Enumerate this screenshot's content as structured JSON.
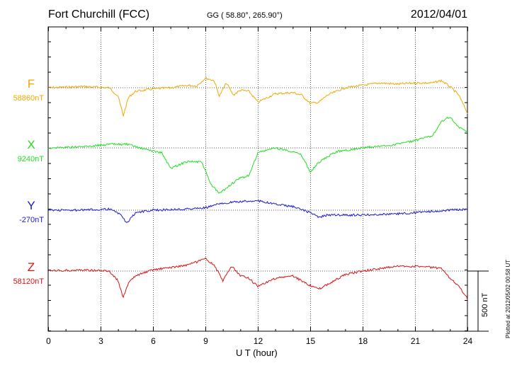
{
  "header": {
    "station": "Fort Churchill (FCC)",
    "coords": "GG ( 58.80°, 265.90°)",
    "date": "2012/04/01"
  },
  "footer": {
    "plotted": "Plotted at 2012/05/02 00:58 UT"
  },
  "chart_data": {
    "type": "line",
    "title": "Fort Churchill (FCC)",
    "xlabel": "U T (hour)",
    "ylabel": "",
    "xlim": [
      0,
      24
    ],
    "xticks": [
      "0",
      "3",
      "6",
      "9",
      "12",
      "15",
      "18",
      "21",
      "24"
    ],
    "grid": true,
    "scale_bar": {
      "label": "500 nT",
      "value_nT": 500
    },
    "series": [
      {
        "name": "F",
        "baseline_label": "58860nT",
        "color": "#f0a800",
        "x": [
          0,
          2,
          3.5,
          4.0,
          4.3,
          4.6,
          5,
          6,
          7,
          8,
          8.5,
          9,
          9.5,
          9.8,
          10.2,
          10.6,
          11,
          11.5,
          12,
          13,
          14,
          14.5,
          15,
          15.5,
          16,
          17,
          18,
          19,
          20,
          21,
          22,
          22.5,
          23,
          23.5,
          24
        ],
        "values": [
          0,
          10,
          0,
          -70,
          -230,
          -80,
          -30,
          -10,
          0,
          20,
          15,
          80,
          60,
          -70,
          40,
          -60,
          -20,
          -30,
          -120,
          -50,
          -40,
          -60,
          -130,
          -120,
          -60,
          0,
          20,
          40,
          30,
          40,
          40,
          60,
          10,
          -60,
          -210
        ]
      },
      {
        "name": "X",
        "baseline_label": "9240nT",
        "color": "#22dd22",
        "x": [
          0,
          2,
          3.5,
          4.5,
          5.5,
          6.5,
          7,
          8,
          8.8,
          9.3,
          9.8,
          10.5,
          11,
          11.5,
          12,
          13,
          14,
          14.5,
          15,
          15.5,
          16.5,
          18,
          19.5,
          21,
          22,
          22.5,
          23,
          23.5,
          24
        ],
        "values": [
          0,
          10,
          30,
          30,
          -10,
          -40,
          -170,
          -110,
          -120,
          -300,
          -380,
          -300,
          -250,
          -230,
          -40,
          0,
          -30,
          -60,
          -200,
          -120,
          -30,
          0,
          20,
          60,
          100,
          220,
          260,
          170,
          130
        ]
      },
      {
        "name": "Y",
        "baseline_label": "-270nT",
        "color": "#1a1acc",
        "x": [
          0,
          2,
          3.5,
          4.2,
          4.5,
          5,
          6,
          8,
          9,
          10,
          11,
          12,
          13,
          14,
          15,
          15.5,
          16,
          18,
          20,
          22,
          24
        ],
        "values": [
          0,
          0,
          10,
          -40,
          -110,
          -20,
          0,
          10,
          20,
          60,
          70,
          80,
          50,
          30,
          -20,
          -60,
          -40,
          -40,
          -30,
          -10,
          10
        ]
      },
      {
        "name": "Z",
        "baseline_label": "58120nT",
        "color": "#dd1111",
        "x": [
          0,
          2,
          3.5,
          4.0,
          4.3,
          4.6,
          5,
          6,
          7,
          8,
          9,
          9.5,
          10,
          10.5,
          11,
          11.5,
          12,
          13,
          14,
          15,
          15.5,
          16,
          17,
          18,
          20,
          21,
          22,
          22.5,
          23,
          23.5,
          24
        ],
        "values": [
          0,
          10,
          0,
          -80,
          -220,
          -100,
          -40,
          10,
          30,
          50,
          100,
          50,
          -80,
          40,
          -40,
          -60,
          -130,
          -60,
          -40,
          -120,
          -150,
          -110,
          -30,
          0,
          40,
          40,
          30,
          20,
          -60,
          -120,
          -230
        ]
      }
    ]
  }
}
